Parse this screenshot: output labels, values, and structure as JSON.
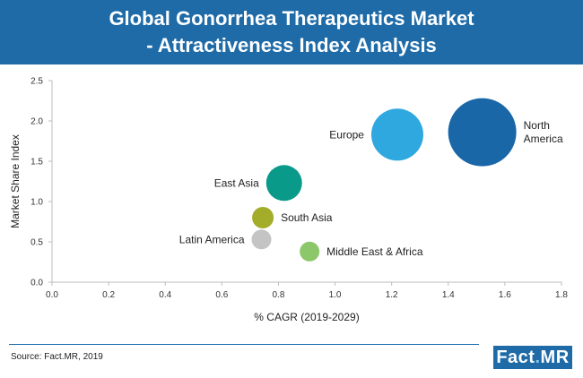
{
  "header": {
    "title_line1": "Global Gonorrhea Therapeutics Market",
    "title_line2": "- Attractiveness Index Analysis"
  },
  "footer": {
    "source": "Source: Fact.MR, 2019",
    "logo_part1": "Fact",
    "logo_dot": ".",
    "logo_part2": "MR"
  },
  "chart_data": {
    "type": "scatter",
    "xlabel": "% CAGR (2019-2029)",
    "ylabel": "Market Share Index",
    "xlim": [
      0.0,
      1.8
    ],
    "ylim": [
      0.0,
      2.5
    ],
    "xticks": [
      "0.0",
      "0.2",
      "0.4",
      "0.6",
      "0.8",
      "1.0",
      "1.2",
      "1.4",
      "1.6",
      "1.8"
    ],
    "yticks": [
      "0.0",
      "0.5",
      "1.0",
      "1.5",
      "2.0",
      "2.5"
    ],
    "grid": false,
    "legend": "none",
    "series": [
      {
        "name": "North America",
        "label_lines": [
          "North",
          "America"
        ],
        "x": 1.52,
        "y": 1.86,
        "size": 38,
        "color": "#1a67a8",
        "label_side": "right"
      },
      {
        "name": "Europe",
        "label_lines": [
          "Europe"
        ],
        "x": 1.22,
        "y": 1.83,
        "size": 29,
        "color": "#2fa8e0",
        "label_side": "left"
      },
      {
        "name": "East Asia",
        "label_lines": [
          "East Asia"
        ],
        "x": 0.82,
        "y": 1.23,
        "size": 20,
        "color": "#0a9a8a",
        "label_side": "left"
      },
      {
        "name": "South Asia",
        "label_lines": [
          "South Asia"
        ],
        "x": 0.745,
        "y": 0.8,
        "size": 12,
        "color": "#a4ad2a",
        "label_side": "right"
      },
      {
        "name": "Latin America",
        "label_lines": [
          "Latin America"
        ],
        "x": 0.74,
        "y": 0.53,
        "size": 11,
        "color": "#c4c4c4",
        "label_side": "left"
      },
      {
        "name": "Middle East & Africa",
        "label_lines": [
          "Middle East & Africa"
        ],
        "x": 0.91,
        "y": 0.38,
        "size": 11,
        "color": "#8cc86a",
        "label_side": "right"
      }
    ]
  }
}
